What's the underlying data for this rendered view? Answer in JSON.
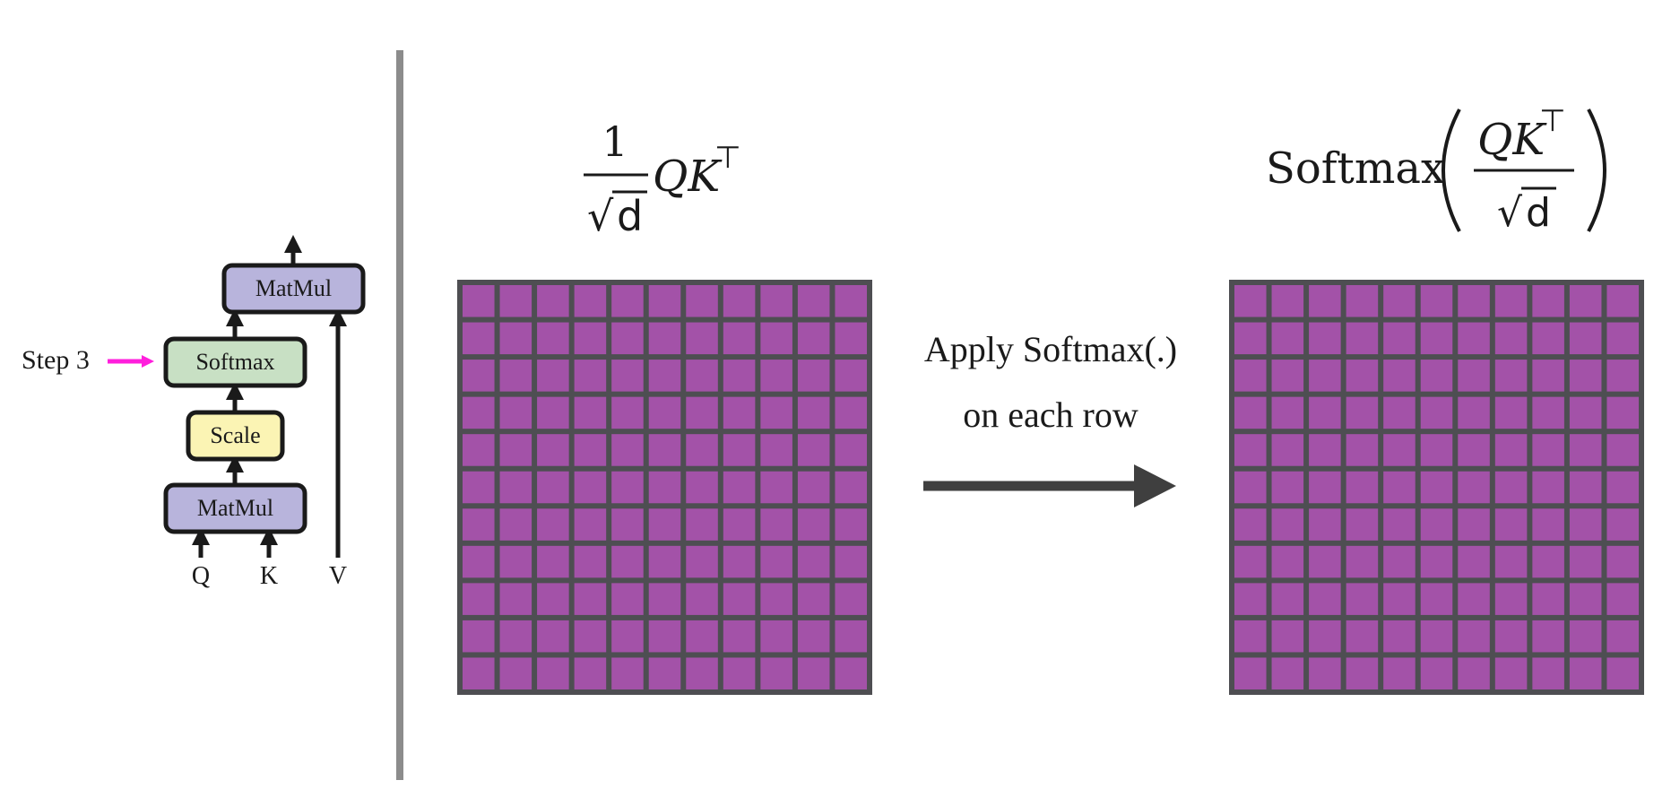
{
  "pipeline": {
    "step_label": "Step 3",
    "blocks": {
      "matmul_top": "MatMul",
      "softmax": "Softmax",
      "scale": "Scale",
      "matmul_bottom": "MatMul"
    },
    "inputs": {
      "q": "Q",
      "k": "K",
      "v": "V"
    },
    "colors": {
      "matmul": "#b8b4dc",
      "softmax": "#c8e0c4",
      "scale": "#fbf4b4",
      "pointer": "#ff1fdc",
      "stroke": "#1a1a1a"
    }
  },
  "left_formula": {
    "numerator": "1",
    "radical": "√",
    "radicand": "d",
    "product": "QK",
    "transpose": "⊤"
  },
  "right_formula": {
    "func": "Softmax",
    "product": "QK",
    "transpose": "⊤",
    "radical": "√",
    "radicand": "d"
  },
  "transition": {
    "line1": "Apply Softmax(.)",
    "line2": "on each row"
  },
  "grids": {
    "rows": 11,
    "cols": 11,
    "cell_color": "#a352a8",
    "border_color": "#4e4e52"
  },
  "divider_color": "#8c8c8c"
}
